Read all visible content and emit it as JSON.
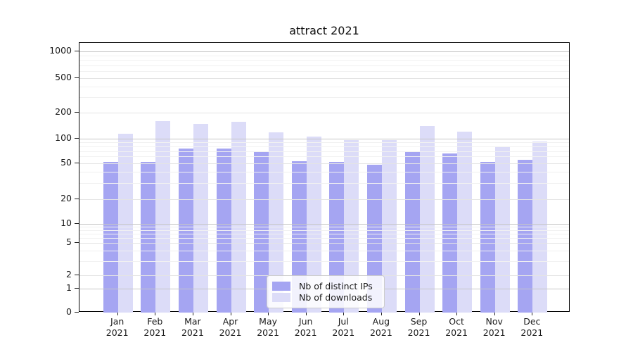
{
  "colors": {
    "ips_bar": "#a5a5f2",
    "downloads_bar": "#dcdcf8",
    "grid_decade": "#c6c6c6",
    "grid_major": "#e4e4e4",
    "grid_minor": "#f1f1f1",
    "axis_text": "#1a1a1a"
  },
  "chart_data": {
    "type": "bar",
    "title": "attract 2021",
    "categories": [
      "Jan 2021",
      "Feb 2021",
      "Mar 2021",
      "Apr 2021",
      "May 2021",
      "Jun 2021",
      "Jul 2021",
      "Aug 2021",
      "Sep 2021",
      "Oct 2021",
      "Nov 2021",
      "Dec 2021"
    ],
    "series": [
      {
        "name": "Nb of distinct IPs",
        "values": [
          52,
          52,
          75,
          76,
          70,
          53,
          52,
          48,
          68,
          65,
          52,
          55
        ]
      },
      {
        "name": "Nb of downloads",
        "values": [
          113,
          160,
          148,
          158,
          118,
          105,
          97,
          97,
          140,
          120,
          80,
          92
        ]
      }
    ],
    "xlabel": "",
    "ylabel": "",
    "yscale": "symlog",
    "y_ticks": [
      0,
      1,
      2,
      5,
      10,
      20,
      50,
      100,
      200,
      500,
      1000
    ],
    "y_minor_ticks": [
      3,
      4,
      6,
      7,
      8,
      9,
      30,
      40,
      60,
      70,
      80,
      90,
      300,
      400,
      600,
      700,
      800,
      900
    ],
    "ylim": [
      0,
      1300
    ],
    "grid": true,
    "grid_on_top": true,
    "legend_position": "lower center"
  }
}
